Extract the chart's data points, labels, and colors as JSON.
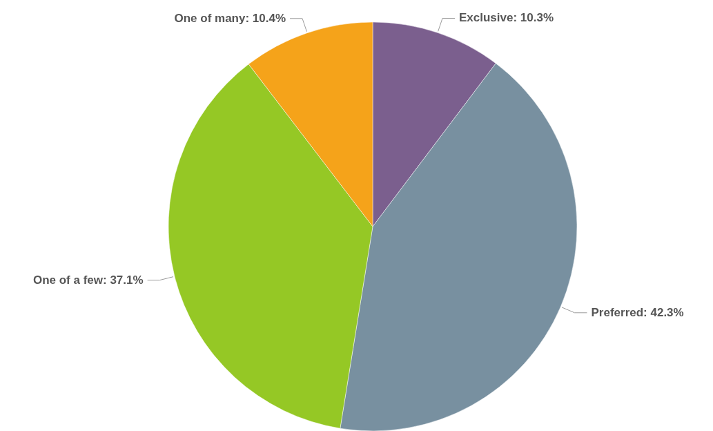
{
  "chart_data": {
    "type": "pie",
    "categories": [
      "Exclusive",
      "Preferred",
      "One of a few",
      "One of many"
    ],
    "values": [
      10.3,
      42.3,
      37.1,
      10.4
    ],
    "value_labels": [
      "10.3%",
      "42.3%",
      "37.1%",
      "10.4%"
    ],
    "colors": [
      "#7b5f8e",
      "#7890a0",
      "#95c825",
      "#f5a31a"
    ]
  }
}
